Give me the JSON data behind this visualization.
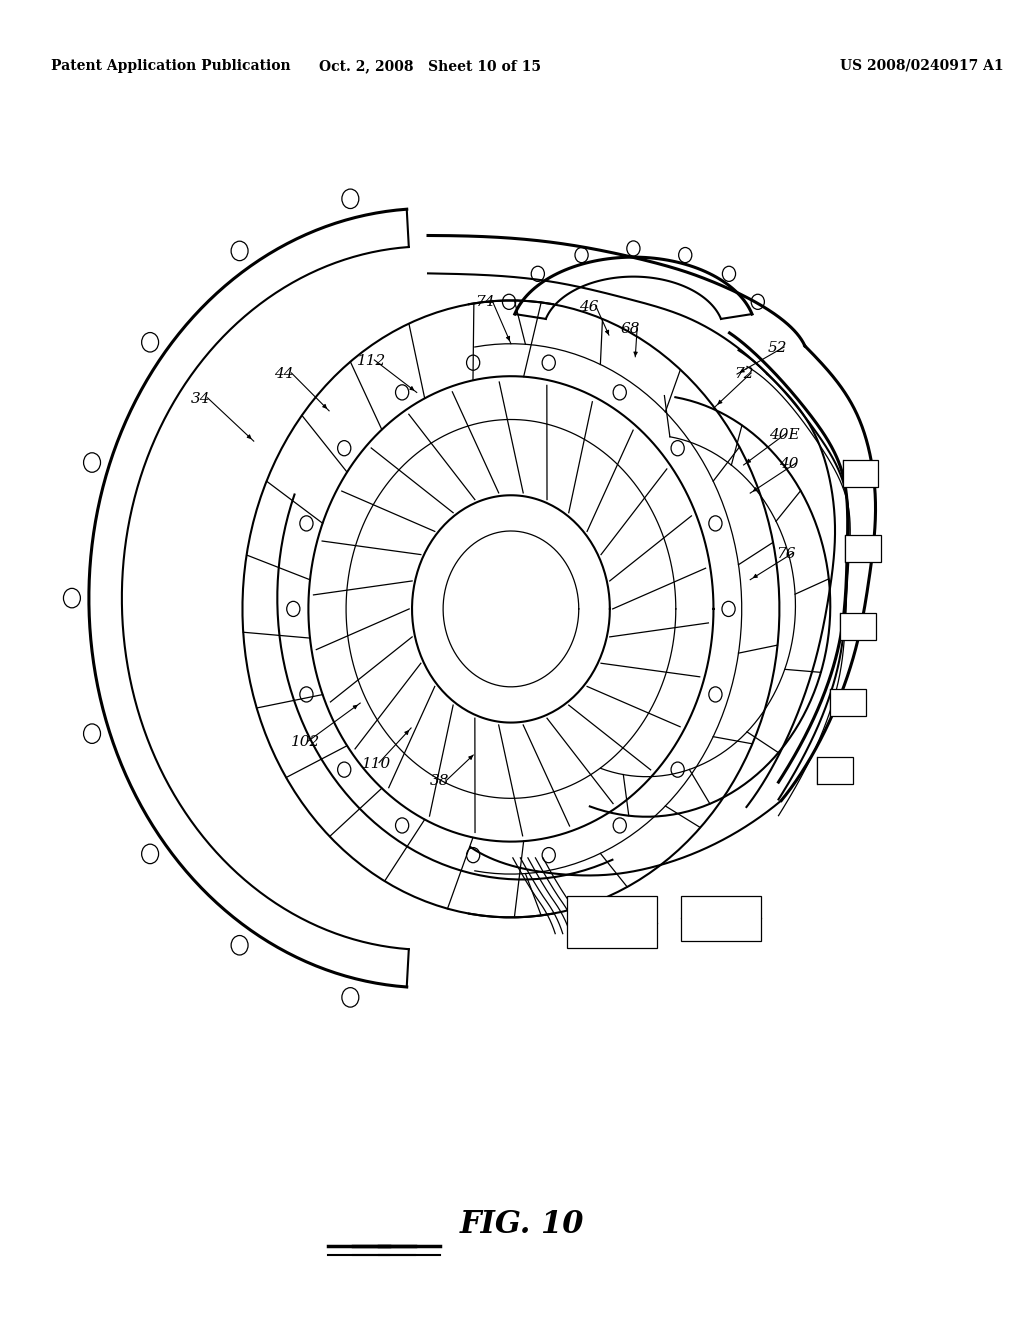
{
  "header_left": "Patent Application Publication",
  "header_center": "Oct. 2, 2008   Sheet 10 of 15",
  "header_right": "US 2008/0240917 A1",
  "fig_label": "FIG. 10",
  "background_color": "#ffffff",
  "line_color": "#000000",
  "label_color": "#000000",
  "header_fontsize": 10,
  "label_fontsize": 11,
  "fig_label_fontsize": 22
}
